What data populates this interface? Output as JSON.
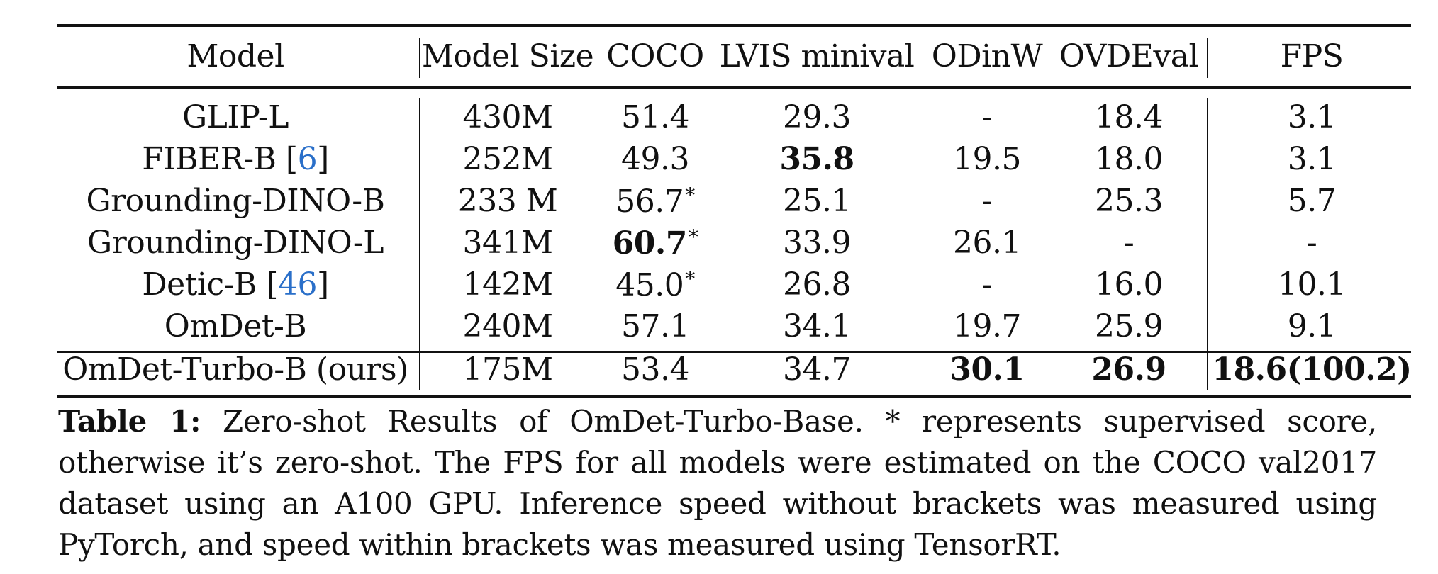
{
  "table": {
    "headers": {
      "model": "Model",
      "model_size": "Model Size",
      "coco": "COCO",
      "lvis": "LVIS minival",
      "odinw": "ODinW",
      "ovdeval": "OVDEval",
      "fps": "FPS"
    },
    "rows": [
      {
        "model": "GLIP-L",
        "size": "430M",
        "coco": "51.4",
        "lvis": "29.3",
        "odinw": "-",
        "ovdeval": "18.4",
        "fps": "3.1"
      },
      {
        "model_name": "FIBER-B",
        "ref_open": "[",
        "ref": "6",
        "ref_close": "]",
        "size": "252M",
        "coco": "49.3",
        "lvis": "35.8",
        "odinw": "19.5",
        "ovdeval": "18.0",
        "fps": "3.1"
      },
      {
        "model": "Grounding-DINO-B",
        "size": "233 M",
        "coco": "56.7",
        "coco_mark": "*",
        "lvis": "25.1",
        "odinw": "-",
        "ovdeval": "25.3",
        "fps": "5.7"
      },
      {
        "model": "Grounding-DINO-L",
        "size": "341M",
        "coco": "60.7",
        "coco_mark": "*",
        "lvis": "33.9",
        "odinw": "26.1",
        "ovdeval": "-",
        "fps": "-"
      },
      {
        "model_name": "Detic-B",
        "ref_open": "[",
        "ref": "46",
        "ref_close": "]",
        "size": "142M",
        "coco": "45.0",
        "coco_mark": "*",
        "lvis": "26.8",
        "odinw": "-",
        "ovdeval": "16.0",
        "fps": "10.1"
      },
      {
        "model": "OmDet-B",
        "size": "240M",
        "coco": "57.1",
        "lvis": "34.1",
        "odinw": "19.7",
        "ovdeval": "25.9",
        "fps": "9.1"
      },
      {
        "model": "OmDet-Turbo-B (ours)",
        "size": "175M",
        "coco": "53.4",
        "lvis": "34.7",
        "odinw": "30.1",
        "ovdeval": "26.9",
        "fps": "18.6(100.2)"
      }
    ]
  },
  "caption": {
    "label": "Table 1:",
    "text": "Zero-shot Results of OmDet-Turbo-Base. * represents supervised score, otherwise it’s zero-shot. The FPS for all models were estimated on the COCO val2017 dataset using an A100 GPU. Inference speed without brackets was measured using PyTorch, and speed within brackets was measured using TensorRT."
  },
  "colors": {
    "text": "#111111",
    "citation_link": "#2a6fc9"
  }
}
